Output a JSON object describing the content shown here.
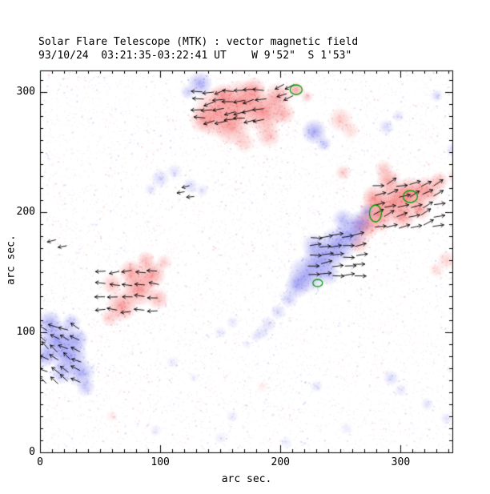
{
  "chart_data": {
    "type": "heatmap",
    "title": "Solar Flare Telescope (MTK) : vector magnetic field",
    "subtitle": "93/10/24  03:21:35-03:22:41 UT    W 9'52\"  S 1'53\"",
    "xlabel": "arc sec.",
    "ylabel": "arc sec.",
    "xlim": [
      0,
      343
    ],
    "ylim": [
      0,
      318
    ],
    "x_ticks": [
      0,
      100,
      200,
      300
    ],
    "y_ticks": [
      0,
      100,
      200,
      300
    ],
    "minor_tick_step": 10,
    "legend": "red = positive polarity, blue = negative polarity, arrows = transverse field vectors, green = contours",
    "colors": {
      "positive": "#F25050",
      "negative": "#6464EB",
      "vector": "#000000",
      "contour": "#00A000",
      "axis": "#000000",
      "background": "#FFFFFF"
    },
    "regions_format": [
      "x_arcsec",
      "y_arcsec",
      "radius_arcsec",
      "polarity(p=red,n=blue)",
      "strength"
    ],
    "regions": [
      [
        148,
        283,
        16,
        "p",
        0.55
      ],
      [
        168,
        292,
        14,
        "p",
        0.6
      ],
      [
        186,
        283,
        13,
        "p",
        0.6
      ],
      [
        160,
        271,
        12,
        "p",
        0.45
      ],
      [
        198,
        296,
        9,
        "p",
        0.5
      ],
      [
        136,
        277,
        9,
        "p",
        0.4
      ],
      [
        178,
        302,
        8,
        "p",
        0.45
      ],
      [
        152,
        297,
        8,
        "p",
        0.45
      ],
      [
        203,
        282,
        7,
        "p",
        0.4
      ],
      [
        190,
        264,
        8,
        "p",
        0.35
      ],
      [
        170,
        258,
        7,
        "p",
        0.25
      ],
      [
        213,
        302,
        5,
        "p",
        0.5
      ],
      [
        222,
        296,
        4,
        "p",
        0.3
      ],
      [
        250,
        277,
        8,
        "p",
        0.3
      ],
      [
        258,
        268,
        6,
        "p",
        0.2
      ],
      [
        133,
        307,
        8,
        "n",
        0.5
      ],
      [
        123,
        300,
        5,
        "n",
        0.3
      ],
      [
        228,
        267,
        8,
        "n",
        0.55
      ],
      [
        236,
        257,
        5,
        "n",
        0.35
      ],
      [
        288,
        271,
        5,
        "n",
        0.25
      ],
      [
        298,
        280,
        4,
        "n",
        0.2
      ],
      [
        330,
        297,
        4,
        "n",
        0.25
      ],
      [
        281,
        198,
        12,
        "p",
        0.6
      ],
      [
        295,
        209,
        12,
        "p",
        0.6
      ],
      [
        308,
        215,
        11,
        "p",
        0.65
      ],
      [
        322,
        218,
        9,
        "p",
        0.55
      ],
      [
        290,
        226,
        8,
        "p",
        0.5
      ],
      [
        270,
        188,
        9,
        "p",
        0.5
      ],
      [
        332,
        226,
        6,
        "p",
        0.4
      ],
      [
        302,
        196,
        8,
        "p",
        0.5
      ],
      [
        278,
        212,
        8,
        "p",
        0.55
      ],
      [
        265,
        174,
        7,
        "p",
        0.35
      ],
      [
        286,
        236,
        6,
        "p",
        0.3
      ],
      [
        316,
        202,
        7,
        "p",
        0.5
      ],
      [
        252,
        233,
        5,
        "p",
        0.3
      ],
      [
        338,
        160,
        6,
        "p",
        0.25
      ],
      [
        330,
        152,
        5,
        "p",
        0.2
      ],
      [
        345,
        230,
        5,
        "p",
        0.25
      ],
      [
        350,
        212,
        4,
        "p",
        0.25
      ],
      [
        222,
        148,
        12,
        "n",
        0.55
      ],
      [
        234,
        160,
        12,
        "n",
        0.6
      ],
      [
        247,
        172,
        12,
        "n",
        0.6
      ],
      [
        258,
        182,
        10,
        "n",
        0.55
      ],
      [
        266,
        191,
        8,
        "n",
        0.5
      ],
      [
        214,
        139,
        8,
        "n",
        0.5
      ],
      [
        240,
        148,
        7,
        "n",
        0.35
      ],
      [
        228,
        172,
        8,
        "n",
        0.4
      ],
      [
        252,
        194,
        7,
        "n",
        0.4
      ],
      [
        207,
        128,
        6,
        "n",
        0.3
      ],
      [
        198,
        117,
        5,
        "n",
        0.25
      ],
      [
        190,
        107,
        5,
        "n",
        0.2
      ],
      [
        180,
        97,
        4,
        "n",
        0.18
      ],
      [
        272,
        201,
        5,
        "n",
        0.4
      ],
      [
        100,
        228,
        6,
        "n",
        0.25
      ],
      [
        112,
        234,
        5,
        "n",
        0.2
      ],
      [
        125,
        222,
        5,
        "n",
        0.25
      ],
      [
        135,
        218,
        4,
        "n",
        0.2
      ],
      [
        92,
        219,
        4,
        "n",
        0.18
      ],
      [
        68,
        122,
        10,
        "p",
        0.55
      ],
      [
        82,
        136,
        11,
        "p",
        0.6
      ],
      [
        93,
        148,
        9,
        "p",
        0.55
      ],
      [
        76,
        150,
        8,
        "p",
        0.5
      ],
      [
        60,
        140,
        7,
        "p",
        0.35
      ],
      [
        98,
        128,
        7,
        "p",
        0.4
      ],
      [
        88,
        160,
        6,
        "p",
        0.38
      ],
      [
        103,
        158,
        5,
        "p",
        0.3
      ],
      [
        58,
        112,
        6,
        "p",
        0.3
      ],
      [
        14,
        94,
        12,
        "n",
        0.6
      ],
      [
        24,
        80,
        12,
        "n",
        0.6
      ],
      [
        34,
        66,
        9,
        "n",
        0.5
      ],
      [
        8,
        108,
        8,
        "n",
        0.5
      ],
      [
        18,
        66,
        7,
        "n",
        0.42
      ],
      [
        30,
        94,
        8,
        "n",
        0.5
      ],
      [
        5,
        80,
        7,
        "n",
        0.5
      ],
      [
        38,
        54,
        6,
        "n",
        0.35
      ],
      [
        26,
        108,
        6,
        "n",
        0.38
      ],
      [
        150,
        100,
        4,
        "n",
        0.15
      ],
      [
        160,
        108,
        4,
        "n",
        0.15
      ],
      [
        172,
        90,
        3,
        "n",
        0.12
      ],
      [
        185,
        100,
        5,
        "n",
        0.18
      ],
      [
        230,
        55,
        4,
        "n",
        0.18
      ],
      [
        292,
        62,
        5,
        "n",
        0.25
      ],
      [
        300,
        52,
        4,
        "n",
        0.18
      ],
      [
        322,
        40,
        4,
        "n",
        0.2
      ],
      [
        338,
        28,
        4,
        "n",
        0.18
      ],
      [
        344,
        252,
        5,
        "n",
        0.25
      ],
      [
        350,
        258,
        4,
        "n",
        0.2
      ],
      [
        160,
        30,
        4,
        "n",
        0.13
      ],
      [
        96,
        18,
        4,
        "n",
        0.12
      ],
      [
        150,
        12,
        4,
        "n",
        0.12
      ],
      [
        205,
        8,
        4,
        "n",
        0.12
      ],
      [
        255,
        20,
        4,
        "n",
        0.12
      ],
      [
        60,
        30,
        4,
        "p",
        0.12
      ],
      [
        185,
        55,
        4,
        "p",
        0.1
      ],
      [
        110,
        75,
        4,
        "n",
        0.12
      ],
      [
        128,
        62,
        3,
        "n",
        0.1
      ]
    ],
    "vector_clusters_format": "grid of transverse-field arrows: origin(x0,y0), cols x rows, spacing(dx,dy), mean angle deg CCW from +x, jitter deg, length arcsec",
    "vector_clusters": [
      {
        "x0": 136,
        "y0": 277,
        "cols": 7,
        "rows": 4,
        "dx": 8.5,
        "dy": 8,
        "angle": 188,
        "jitter": 15,
        "len": 9
      },
      {
        "x0": 204,
        "y0": 298,
        "cols": 2,
        "rows": 2,
        "dx": 7,
        "dy": 7,
        "angle": 205,
        "jitter": 10,
        "len": 8
      },
      {
        "x0": 278,
        "y0": 188,
        "cols": 6,
        "rows": 5,
        "dx": 10,
        "dy": 8.5,
        "angle": 18,
        "jitter": 18,
        "len": 9
      },
      {
        "x0": 224,
        "y0": 148,
        "cols": 5,
        "rows": 5,
        "dx": 9.5,
        "dy": 8,
        "angle": 6,
        "jitter": 10,
        "len": 9
      },
      {
        "x0": 54,
        "y0": 118,
        "cols": 5,
        "rows": 4,
        "dx": 11,
        "dy": 11,
        "angle": 182,
        "jitter": 14,
        "len": 8
      },
      {
        "x0": 6,
        "y0": 58,
        "cols": 4,
        "rows": 6,
        "dx": 9,
        "dy": 9,
        "angle": 148,
        "jitter": 18,
        "len": 8
      }
    ],
    "vectors_extra": [
      [
        13,
        177,
        195,
        7
      ],
      [
        22,
        172,
        190,
        7
      ],
      [
        120,
        217,
        190,
        6
      ],
      [
        128,
        213,
        185,
        6
      ],
      [
        124,
        222,
        195,
        6
      ]
    ],
    "contours_format": [
      "x",
      "y",
      "rx",
      "ry"
    ],
    "contours": [
      [
        213,
        302,
        5,
        4
      ],
      [
        279,
        199,
        5,
        7
      ],
      [
        308,
        213,
        6,
        5
      ],
      [
        231,
        141,
        4,
        3
      ]
    ],
    "noise": {
      "seed": 20241024,
      "count": 9000
    }
  }
}
